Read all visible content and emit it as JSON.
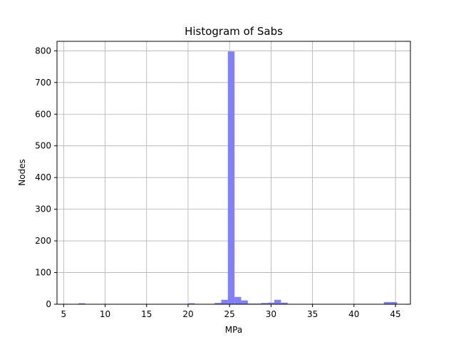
{
  "chart_data": {
    "type": "bar",
    "title": "Histogram of Sabs",
    "xlabel": "MPa",
    "ylabel": "Nodes",
    "xlim": [
      4.2,
      46.8
    ],
    "ylim": [
      0,
      830
    ],
    "xticks": [
      5,
      10,
      15,
      20,
      25,
      30,
      35,
      40,
      45
    ],
    "yticks": [
      0,
      100,
      200,
      300,
      400,
      500,
      600,
      700,
      800
    ],
    "grid": true,
    "color": "#8080ff",
    "bins": [
      {
        "x0": 6.0,
        "x1": 6.8,
        "value": 1
      },
      {
        "x0": 6.8,
        "x1": 7.6,
        "value": 3
      },
      {
        "x0": 20.0,
        "x1": 20.8,
        "value": 3
      },
      {
        "x0": 20.8,
        "x1": 21.6,
        "value": 1
      },
      {
        "x0": 23.2,
        "x1": 24.0,
        "value": 4
      },
      {
        "x0": 24.0,
        "x1": 24.8,
        "value": 14
      },
      {
        "x0": 24.8,
        "x1": 25.6,
        "value": 798
      },
      {
        "x0": 25.6,
        "x1": 26.4,
        "value": 23
      },
      {
        "x0": 26.4,
        "x1": 27.2,
        "value": 12
      },
      {
        "x0": 27.2,
        "x1": 28.0,
        "value": 2
      },
      {
        "x0": 28.0,
        "x1": 28.8,
        "value": 2
      },
      {
        "x0": 28.8,
        "x1": 29.6,
        "value": 4
      },
      {
        "x0": 29.6,
        "x1": 30.4,
        "value": 5
      },
      {
        "x0": 30.4,
        "x1": 31.2,
        "value": 14
      },
      {
        "x0": 31.2,
        "x1": 32.0,
        "value": 5
      },
      {
        "x0": 43.6,
        "x1": 44.4,
        "value": 7
      },
      {
        "x0": 44.4,
        "x1": 45.2,
        "value": 7
      }
    ]
  }
}
